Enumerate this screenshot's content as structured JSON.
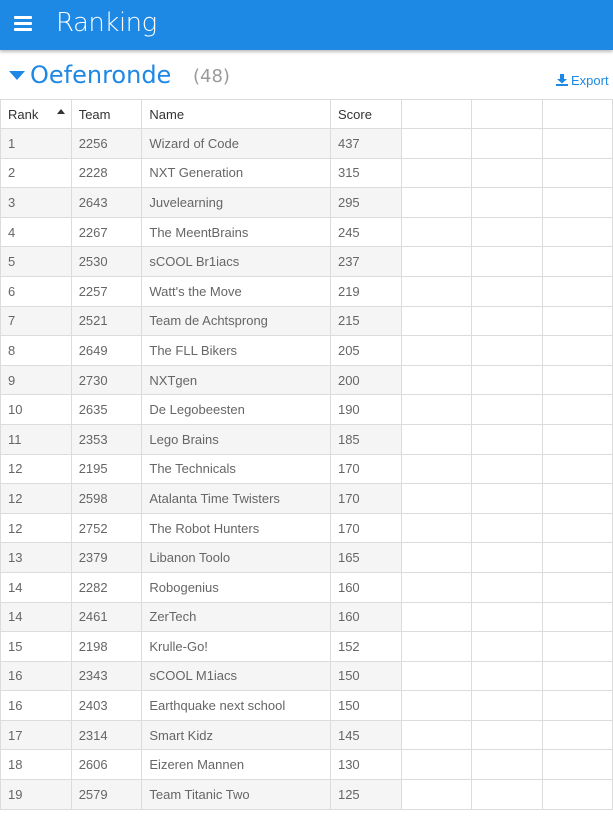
{
  "header": {
    "title": "Ranking",
    "menu_icon": "hamburger-menu-icon"
  },
  "section": {
    "title": "Oefenronde",
    "count": "(48)",
    "export_label": "Export"
  },
  "colors": {
    "accent": "#1e88e5",
    "row_alt": "#f5f5f5"
  },
  "table": {
    "columns": [
      "Rank",
      "Team",
      "Name",
      "Score"
    ],
    "sorted_column": "Rank",
    "sort_direction": "ascending",
    "rows": [
      [
        "1",
        "2256",
        "Wizard of Code",
        "437"
      ],
      [
        "2",
        "2228",
        "NXT Generation",
        "315"
      ],
      [
        "3",
        "2643",
        "Juvelearning",
        "295"
      ],
      [
        "4",
        "2267",
        "The MeentBrains",
        "245"
      ],
      [
        "5",
        "2530",
        "sCOOL Br1iacs",
        "237"
      ],
      [
        "6",
        "2257",
        "Watt's the Move",
        "219"
      ],
      [
        "7",
        "2521",
        "Team de Achtsprong",
        "215"
      ],
      [
        "8",
        "2649",
        "The FLL Bikers",
        "205"
      ],
      [
        "9",
        "2730",
        "NXTgen",
        "200"
      ],
      [
        "10",
        "2635",
        "De Legobeesten",
        "190"
      ],
      [
        "11",
        "2353",
        "Lego Brains",
        "185"
      ],
      [
        "12",
        "2195",
        "The Technicals",
        "170"
      ],
      [
        "12",
        "2598",
        "Atalanta Time Twisters",
        "170"
      ],
      [
        "12",
        "2752",
        "The Robot Hunters",
        "170"
      ],
      [
        "13",
        "2379",
        "Libanon Toolo",
        "165"
      ],
      [
        "14",
        "2282",
        "Robogenius",
        "160"
      ],
      [
        "14",
        "2461",
        "ZerTech",
        "160"
      ],
      [
        "15",
        "2198",
        "Krulle-Go!",
        "152"
      ],
      [
        "16",
        "2343",
        "sCOOL M1iacs",
        "150"
      ],
      [
        "16",
        "2403",
        "Earthquake next school",
        "150"
      ],
      [
        "17",
        "2314",
        "Smart Kidz",
        "145"
      ],
      [
        "18",
        "2606",
        "Eizeren Mannen",
        "130"
      ],
      [
        "19",
        "2579",
        "Team Titanic Two",
        "125"
      ]
    ]
  }
}
